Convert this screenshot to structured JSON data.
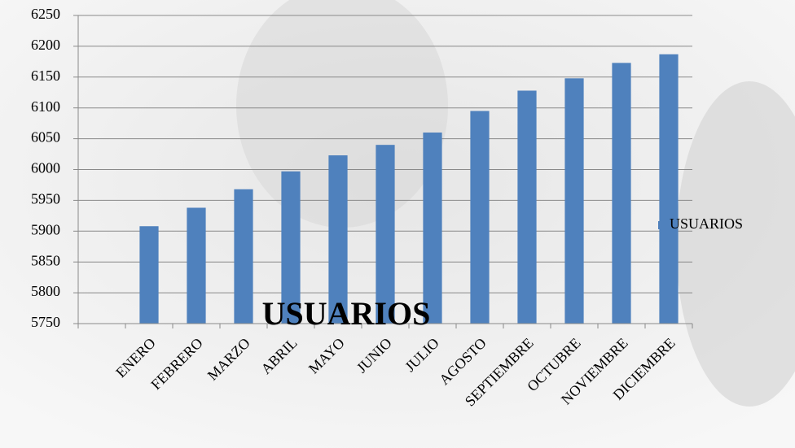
{
  "chart_data": {
    "type": "bar",
    "title": "USUARIOS",
    "categories": [
      null,
      "ENERO",
      "FEBRERO",
      "MARZO",
      "ABRIL",
      "MAYO",
      "JUNIO",
      "JULIO",
      "AGOSTO",
      "SEPTIEMBRE",
      "OCTUBRE",
      "NOVIEMBRE",
      "DICIEMBRE"
    ],
    "series": [
      {
        "name": "USUARIOS",
        "color": "#4f81bd",
        "values": [
          null,
          5908,
          5938,
          5968,
          5997,
          6023,
          6040,
          6060,
          6095,
          6128,
          6148,
          6173,
          6187
        ]
      }
    ],
    "ylim": [
      5750,
      6250
    ],
    "yticks": [
      5750,
      5800,
      5850,
      5900,
      5950,
      6000,
      6050,
      6100,
      6150,
      6200,
      6250
    ],
    "grid": true,
    "legend": "right"
  }
}
